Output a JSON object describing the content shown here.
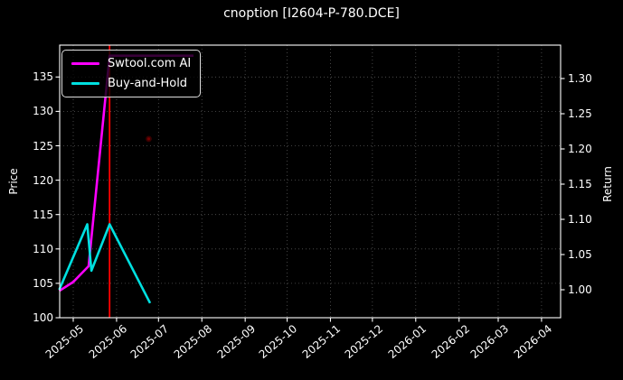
{
  "title": "cnoption [I2604-P-780.DCE]",
  "legend": {
    "items": [
      {
        "label": "Swtool.com AI",
        "color": "#ff00ff"
      },
      {
        "label": "Buy-and-Hold",
        "color": "#00e0e0"
      }
    ]
  },
  "chart_data": {
    "type": "line",
    "title": "cnoption [I2604-P-780.DCE]",
    "background": "#000000",
    "grid": true,
    "legend_position": "upper-left",
    "x_axis": {
      "rotation_deg": 40,
      "ticks": [
        {
          "date": "2025-05-01",
          "label": "2025-05"
        },
        {
          "date": "2025-06-01",
          "label": "2025-06"
        },
        {
          "date": "2025-07-01",
          "label": "2025-07"
        },
        {
          "date": "2025-08-01",
          "label": "2025-08"
        },
        {
          "date": "2025-09-01",
          "label": "2025-09"
        },
        {
          "date": "2025-10-01",
          "label": "2025-10"
        },
        {
          "date": "2025-11-01",
          "label": "2025-11"
        },
        {
          "date": "2025-12-01",
          "label": "2025-12"
        },
        {
          "date": "2026-01-01",
          "label": "2026-01"
        },
        {
          "date": "2026-02-01",
          "label": "2026-02"
        },
        {
          "date": "2026-03-01",
          "label": "2026-03"
        },
        {
          "date": "2026-04-01",
          "label": "2026-04"
        }
      ]
    },
    "y_left": {
      "label": "Price",
      "range": [
        100,
        139.6
      ],
      "ticks": [
        {
          "v": 100,
          "label": "100"
        },
        {
          "v": 105,
          "label": "105"
        },
        {
          "v": 110,
          "label": "110"
        },
        {
          "v": 115,
          "label": "115"
        },
        {
          "v": 120,
          "label": "120"
        },
        {
          "v": 125,
          "label": "125"
        },
        {
          "v": 130,
          "label": "130"
        },
        {
          "v": 135,
          "label": "135"
        }
      ]
    },
    "y_right": {
      "label": "Return",
      "range": [
        0.96,
        1.347
      ],
      "ticks": [
        {
          "v": 1.0,
          "label": "1.00"
        },
        {
          "v": 1.05,
          "label": "1.05"
        },
        {
          "v": 1.1,
          "label": "1.10"
        },
        {
          "v": 1.15,
          "label": "1.15"
        },
        {
          "v": 1.2,
          "label": "1.20"
        },
        {
          "v": 1.25,
          "label": "1.25"
        },
        {
          "v": 1.3,
          "label": "1.30"
        }
      ]
    },
    "series": [
      {
        "name": "Swtool.com AI",
        "axis": "left",
        "color": "#ff00ff",
        "points": [
          {
            "date": "2025-04-21",
            "value": 103.9
          },
          {
            "date": "2025-05-01",
            "value": 105.2
          },
          {
            "date": "2025-05-12",
            "value": 107.5
          },
          {
            "date": "2025-05-27",
            "value": 138.1
          },
          {
            "date": "2025-07-26",
            "value": 138.1
          }
        ]
      },
      {
        "name": "Buy-and-Hold",
        "axis": "right",
        "color": "#00e0e0",
        "points": [
          {
            "date": "2025-04-21",
            "value": 1.0
          },
          {
            "date": "2025-05-11",
            "value": 1.093
          },
          {
            "date": "2025-05-14",
            "value": 1.027
          },
          {
            "date": "2025-05-27",
            "value": 1.093
          },
          {
            "date": "2025-06-25",
            "value": 0.981
          }
        ]
      }
    ],
    "event_vline": {
      "date": "2025-05-27",
      "color": "#ff0000"
    },
    "faint_marker": {
      "date": "2025-06-24",
      "price": 126,
      "color": "#ff0000",
      "opacity": 0.22
    }
  }
}
